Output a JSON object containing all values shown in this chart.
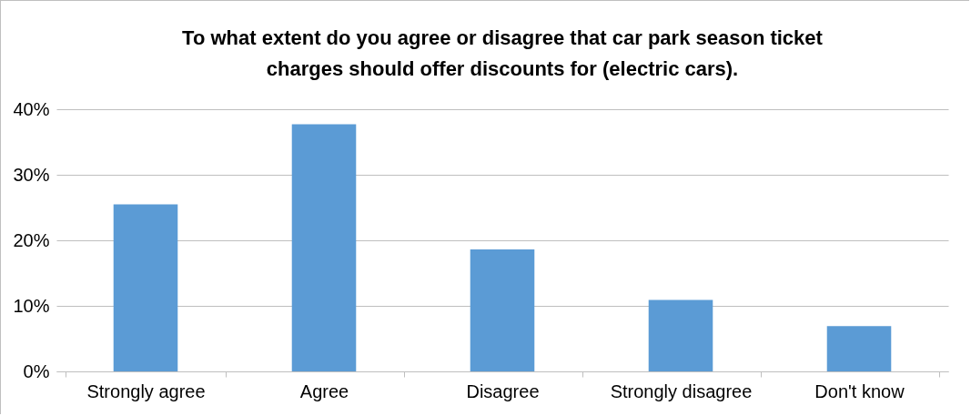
{
  "chart_data": {
    "type": "bar",
    "title": "To what extent do you agree or disagree that car park season ticket charges should offer discounts for (electric cars).",
    "categories": [
      "Strongly agree",
      "Agree",
      "Disagree",
      "Strongly disagree",
      "Don't know"
    ],
    "values": [
      25.5,
      37.7,
      18.6,
      10.9,
      6.9
    ],
    "color": "#5b9bd5",
    "ylim": [
      0,
      40
    ],
    "yticks": [
      {
        "value": 0,
        "label": "0%"
      },
      {
        "value": 10,
        "label": "10%"
      },
      {
        "value": 20,
        "label": "20%"
      },
      {
        "value": 30,
        "label": "30%"
      },
      {
        "value": 40,
        "label": "40%"
      }
    ],
    "grid": "y"
  }
}
